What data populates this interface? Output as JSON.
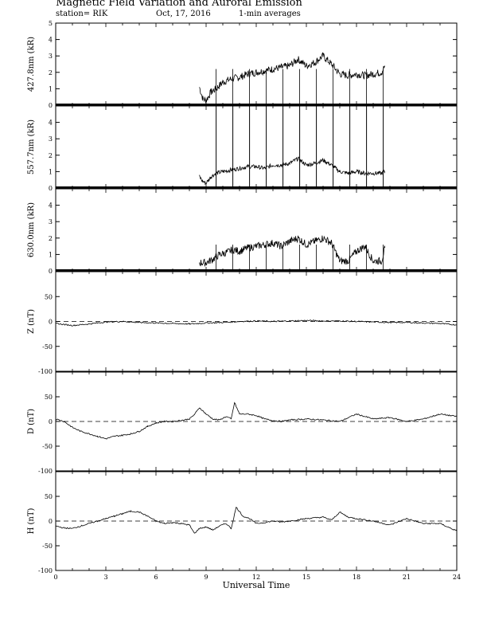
{
  "header": {
    "title": "Magnetic Field Variation and Auroral Emission",
    "station": "station= RIK",
    "date": "Oct, 17, 2016",
    "averaging": "1-min averages"
  },
  "chart_data": {
    "type": "line",
    "xlabel": "Universal Time",
    "xlim": [
      0,
      24
    ],
    "xticks": [
      0,
      3,
      6,
      9,
      12,
      15,
      18,
      21,
      24
    ],
    "panels": [
      {
        "name": "427",
        "ylabel": "427.8nm (kR)",
        "ylim": [
          0,
          5
        ],
        "yticks": [
          0,
          1,
          2,
          3,
          4,
          5
        ],
        "baseline": 0,
        "x": [
          8.6,
          8.8,
          9.0,
          9.3,
          9.6,
          10.0,
          10.5,
          11.0,
          11.5,
          12.0,
          12.5,
          13.0,
          13.5,
          14.0,
          14.5,
          15.0,
          15.5,
          16.0,
          16.5,
          17.0,
          17.5,
          18.0,
          18.5,
          19.0,
          19.5,
          19.7
        ],
        "y": [
          1.1,
          0.4,
          0.3,
          0.8,
          1.0,
          1.4,
          1.6,
          1.7,
          1.9,
          2.0,
          2.1,
          2.2,
          2.3,
          2.4,
          2.8,
          2.4,
          2.6,
          3.0,
          2.5,
          1.9,
          1.8,
          1.9,
          1.8,
          1.9,
          2.0,
          2.4
        ]
      },
      {
        "name": "557",
        "ylabel": "557.7nm (kR)",
        "ylim": [
          0,
          5
        ],
        "yticks": [
          0,
          1,
          2,
          3,
          4
        ],
        "baseline": 0,
        "x": [
          8.6,
          8.8,
          9.0,
          9.3,
          9.6,
          10.0,
          10.5,
          11.0,
          11.5,
          12.0,
          12.5,
          13.0,
          13.5,
          14.0,
          14.5,
          15.0,
          15.5,
          16.0,
          16.5,
          17.0,
          17.5,
          18.0,
          18.5,
          19.0,
          19.5,
          19.7
        ],
        "y": [
          0.7,
          0.4,
          0.3,
          0.7,
          0.9,
          1.0,
          1.1,
          1.2,
          1.3,
          1.3,
          1.2,
          1.4,
          1.4,
          1.5,
          1.8,
          1.4,
          1.5,
          1.7,
          1.4,
          1.0,
          0.9,
          1.0,
          0.9,
          0.9,
          0.9,
          1.0
        ],
        "spikes": [
          9.6,
          10.6,
          11.6,
          12.6,
          13.6,
          14.6,
          15.6,
          16.6,
          17.6,
          18.6,
          19.6
        ]
      },
      {
        "name": "630",
        "ylabel": "630.0nm (kR)",
        "ylim": [
          0,
          5
        ],
        "yticks": [
          0,
          1,
          2,
          3,
          4
        ],
        "baseline": 0,
        "x": [
          8.6,
          9.0,
          9.4,
          9.8,
          10.2,
          10.6,
          11.0,
          11.5,
          12.0,
          12.5,
          13.0,
          13.5,
          14.0,
          14.5,
          15.0,
          15.5,
          16.0,
          16.5,
          17.0,
          17.5,
          18.0,
          18.5,
          19.0,
          19.5,
          19.7
        ],
        "y": [
          0.5,
          0.5,
          0.7,
          1.0,
          1.1,
          1.3,
          1.2,
          1.4,
          1.5,
          1.6,
          1.7,
          1.5,
          1.8,
          2.0,
          1.6,
          1.8,
          2.0,
          1.7,
          0.6,
          0.6,
          1.2,
          1.5,
          0.6,
          0.6,
          1.4
        ]
      },
      {
        "name": "Z",
        "ylabel": "Z (nT)",
        "ylim": [
          -100,
          100
        ],
        "yticks": [
          -100,
          -50,
          0,
          50
        ],
        "ref": 0,
        "x": [
          0,
          1,
          2,
          3,
          4,
          5,
          6,
          7,
          8,
          9,
          10,
          11,
          12,
          13,
          14,
          15,
          16,
          17,
          18,
          19,
          20,
          21,
          22,
          23,
          24
        ],
        "y": [
          -4,
          -8,
          -5,
          -1,
          0,
          -2,
          -3,
          -4,
          -5,
          -3,
          -2,
          0,
          1,
          0,
          1,
          2,
          1,
          1,
          0,
          -1,
          -2,
          -2,
          -3,
          -4,
          -7
        ]
      },
      {
        "name": "D",
        "ylabel": "D (nT)",
        "ylim": [
          -100,
          100
        ],
        "yticks": [
          -100,
          -50,
          0,
          50
        ],
        "ref": 0,
        "x": [
          0,
          0.5,
          1,
          1.5,
          2,
          2.5,
          3,
          3.5,
          4,
          4.5,
          5,
          5.5,
          6,
          6.5,
          7,
          7.5,
          8,
          8.3,
          8.6,
          9.0,
          9.4,
          9.8,
          10.2,
          10.5,
          10.7,
          11.0,
          11.5,
          12,
          12.5,
          13,
          13.5,
          14,
          15,
          16,
          17,
          18,
          19,
          20,
          21,
          22,
          23,
          24
        ],
        "y": [
          5,
          0,
          -12,
          -20,
          -25,
          -30,
          -35,
          -30,
          -28,
          -25,
          -20,
          -10,
          -3,
          0,
          0,
          2,
          5,
          14,
          28,
          15,
          5,
          3,
          10,
          5,
          38,
          15,
          15,
          12,
          5,
          2,
          0,
          3,
          5,
          3,
          0,
          15,
          5,
          8,
          0,
          5,
          15,
          10
        ]
      },
      {
        "name": "H",
        "ylabel": "H (nT)",
        "ylim": [
          -100,
          100
        ],
        "yticks": [
          -100,
          -50,
          0,
          50
        ],
        "ref": 0,
        "x": [
          0,
          0.5,
          1,
          1.5,
          2,
          2.5,
          3,
          3.5,
          4,
          4.5,
          5,
          5.5,
          6,
          6.5,
          7,
          7.5,
          8,
          8.3,
          8.6,
          9.0,
          9.4,
          9.8,
          10.2,
          10.5,
          10.8,
          11.2,
          11.6,
          12,
          12.5,
          13,
          13.5,
          14,
          15,
          16,
          16.5,
          17,
          17.5,
          18,
          19,
          20,
          21,
          22,
          23,
          24
        ],
        "y": [
          -10,
          -14,
          -15,
          -10,
          -5,
          0,
          5,
          10,
          15,
          20,
          18,
          10,
          0,
          -5,
          -3,
          -5,
          -8,
          -25,
          -15,
          -12,
          -18,
          -10,
          -5,
          -15,
          28,
          10,
          5,
          -5,
          -3,
          0,
          -2,
          0,
          5,
          8,
          2,
          18,
          8,
          5,
          0,
          -8,
          5,
          -5,
          -5,
          -20
        ]
      }
    ]
  }
}
